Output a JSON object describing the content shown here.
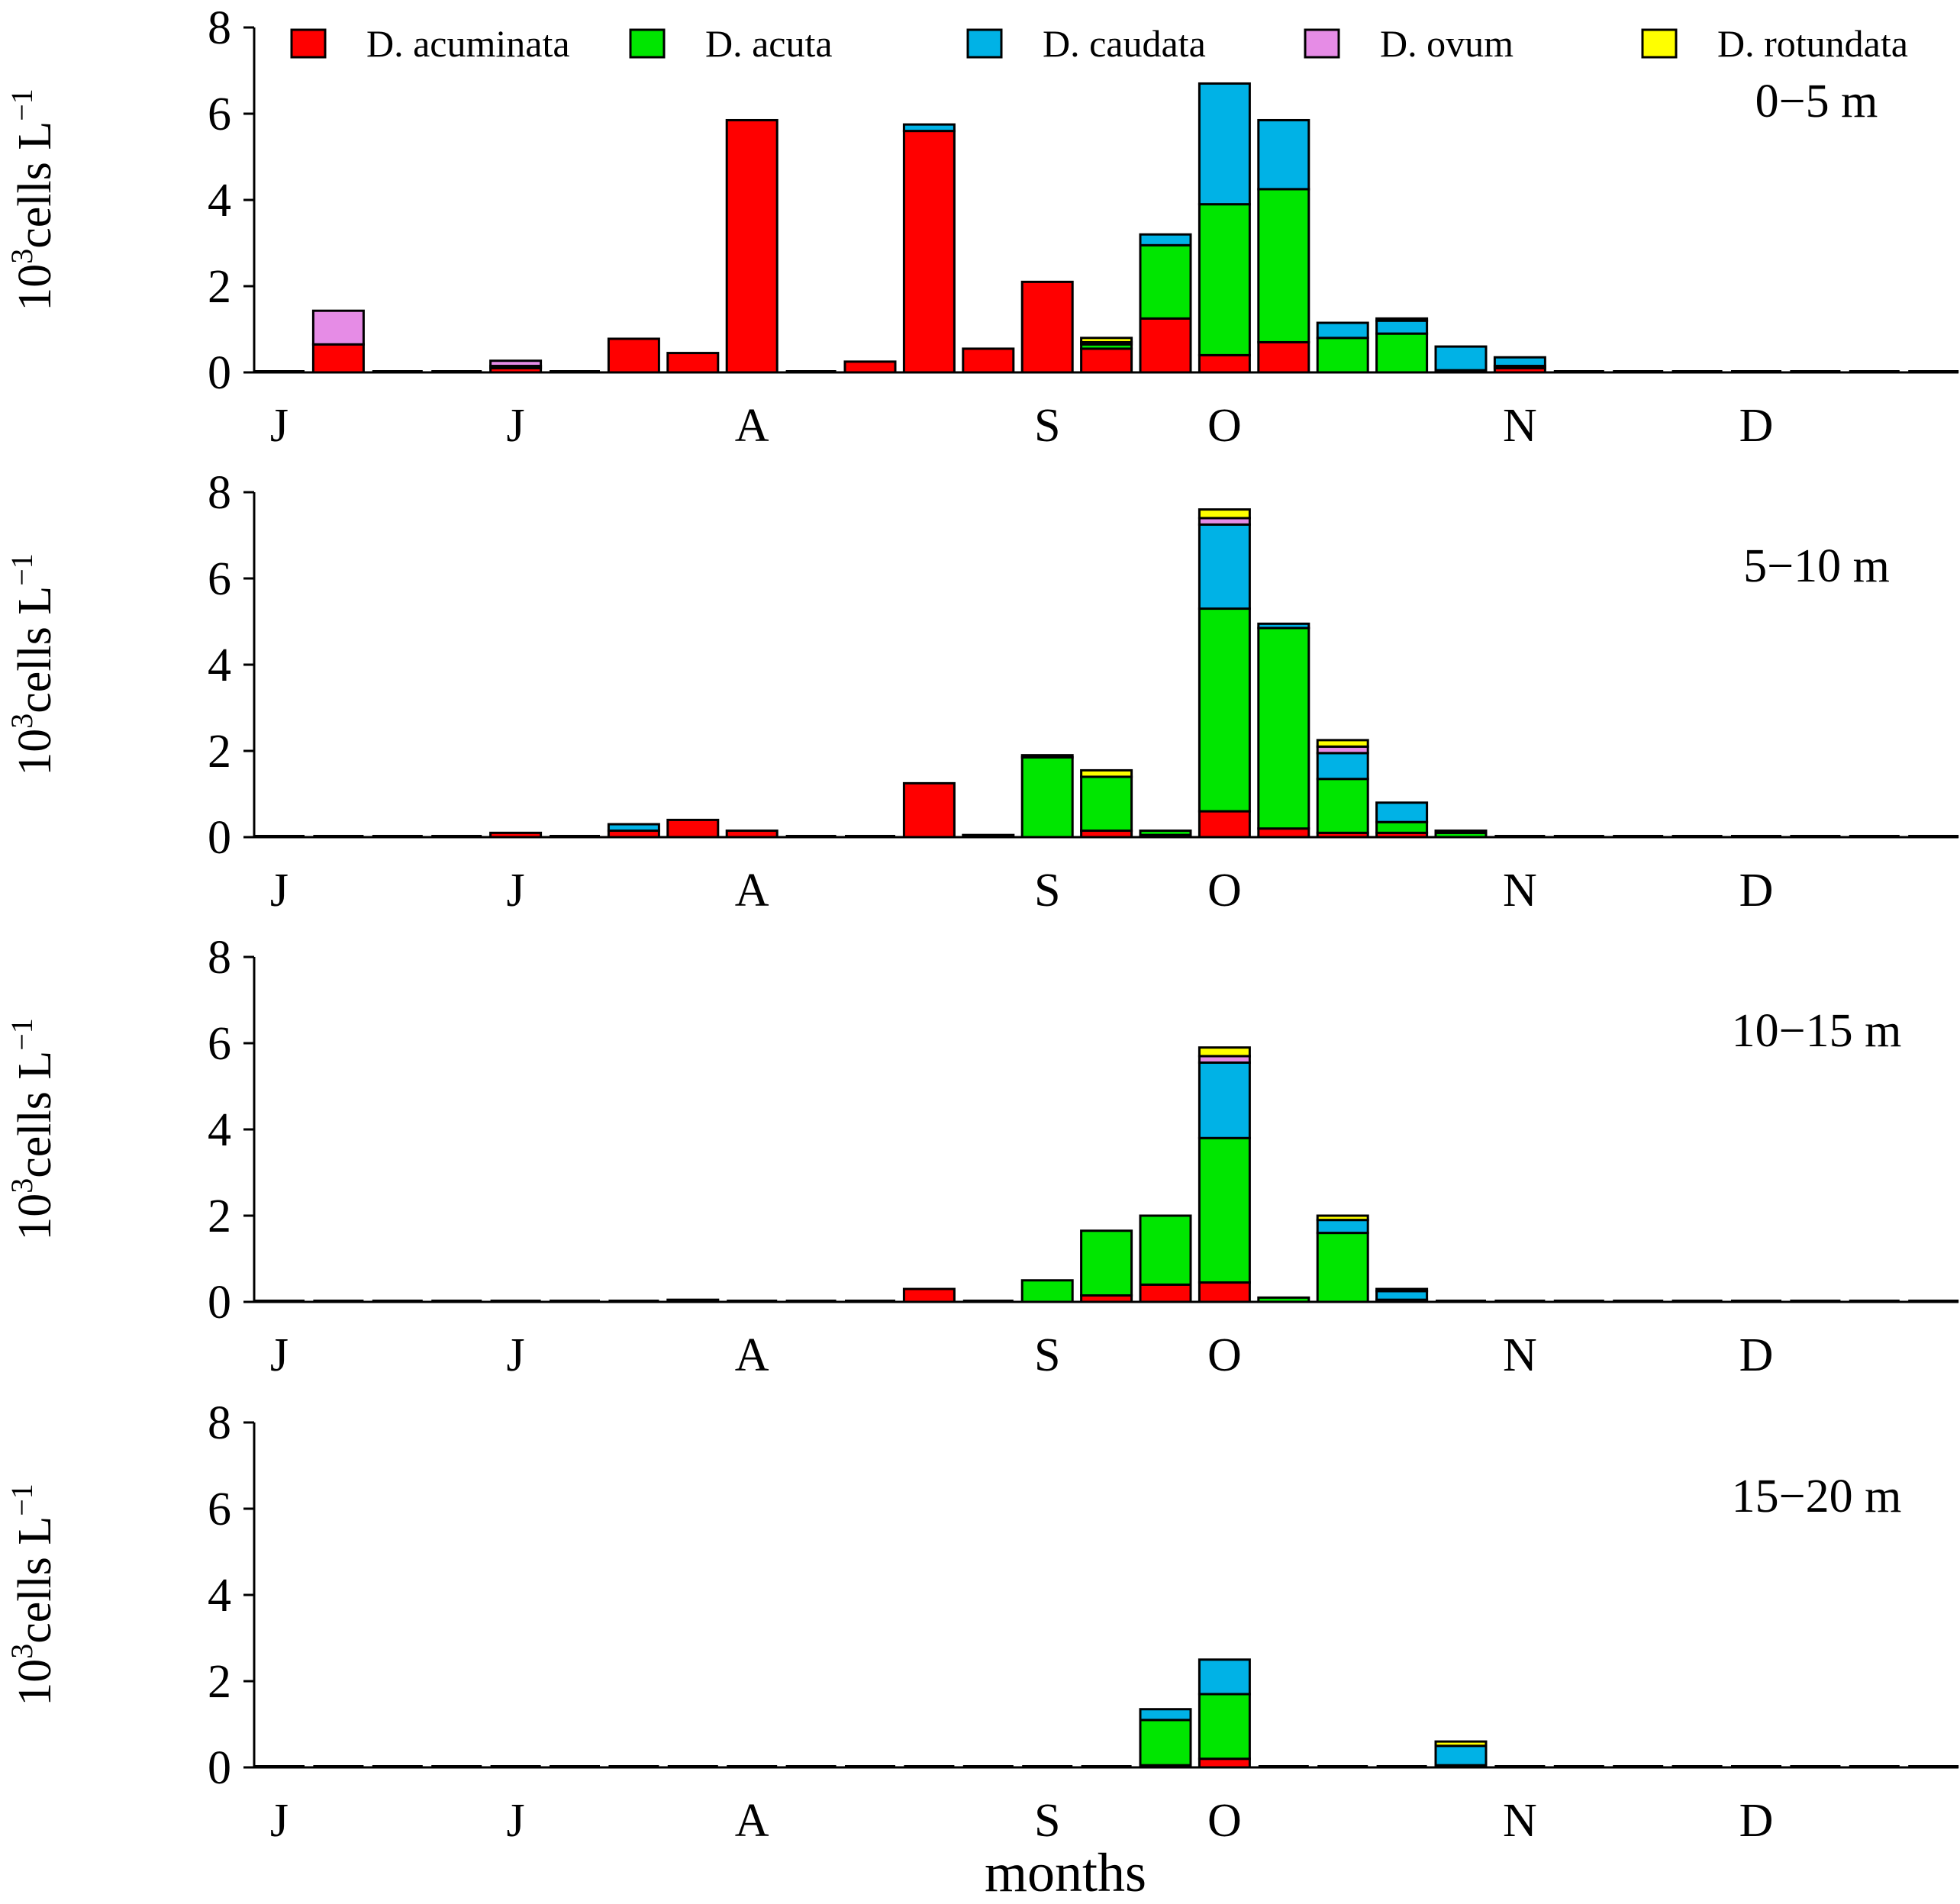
{
  "chart_data": {
    "type": "bar",
    "stacked": true,
    "xlabel": "months",
    "ylabel": {
      "base": "10",
      "exp": "3",
      "unit": "cells L",
      "unit_exp": "−1"
    },
    "ylim": [
      0,
      8
    ],
    "yticks": [
      "0",
      "2",
      "4",
      "6",
      "8"
    ],
    "ytick_values": [
      0,
      2,
      4,
      6,
      8
    ],
    "legend": {
      "position": "top",
      "entries": [
        {
          "name": "D. acuminata",
          "color": "#ff0000"
        },
        {
          "name": "D. acuta",
          "color": "#00e600"
        },
        {
          "name": "D. caudata",
          "color": "#00b2e6"
        },
        {
          "name": "D. ovum",
          "color": "#e68ce6"
        },
        {
          "name": "D. rotundata",
          "color": "#ffff00"
        }
      ]
    },
    "month_ticks": [
      {
        "label": "J",
        "bar": 0
      },
      {
        "label": "J",
        "bar": 4
      },
      {
        "label": "A",
        "bar": 8
      },
      {
        "label": "S",
        "bar": 13
      },
      {
        "label": "O",
        "bar": 16
      },
      {
        "label": "N",
        "bar": 21
      },
      {
        "label": "D",
        "bar": 25
      }
    ],
    "n_bars": 29,
    "panels": [
      {
        "label": "0−5 m",
        "bars": [
          [
            0,
            0,
            0,
            0,
            0
          ],
          [
            0.65,
            0,
            0,
            0.78,
            0
          ],
          [
            0,
            0,
            0,
            0,
            0
          ],
          [
            0,
            0,
            0,
            0,
            0
          ],
          [
            0.1,
            0,
            0.05,
            0.12,
            0
          ],
          [
            0,
            0,
            0,
            0,
            0
          ],
          [
            0.78,
            0,
            0,
            0,
            0
          ],
          [
            0.45,
            0,
            0,
            0,
            0
          ],
          [
            5.85,
            0,
            0,
            0,
            0
          ],
          [
            0,
            0,
            0,
            0,
            0
          ],
          [
            0.25,
            0,
            0,
            0,
            0
          ],
          [
            5.6,
            0,
            0.15,
            0,
            0
          ],
          [
            0.55,
            0,
            0,
            0,
            0
          ],
          [
            2.1,
            0,
            0,
            0,
            0
          ],
          [
            0.55,
            0.1,
            0.05,
            0,
            0.1
          ],
          [
            1.25,
            1.7,
            0.25,
            0,
            0
          ],
          [
            0.4,
            3.5,
            2.8,
            0,
            0
          ],
          [
            0.7,
            3.55,
            1.6,
            0,
            0
          ],
          [
            0,
            0.8,
            0.35,
            0,
            0
          ],
          [
            0,
            0.9,
            0.3,
            0,
            0.05
          ],
          [
            0.05,
            0,
            0.55,
            0,
            0
          ],
          [
            0.1,
            0.05,
            0.2,
            0,
            0
          ],
          [
            0,
            0,
            0,
            0,
            0
          ],
          [
            0,
            0,
            0,
            0,
            0
          ],
          [
            0,
            0,
            0,
            0,
            0
          ],
          [
            0,
            0,
            0,
            0,
            0
          ],
          [
            0,
            0,
            0,
            0,
            0
          ],
          [
            0,
            0,
            0,
            0,
            0
          ],
          [
            0,
            0,
            0,
            0,
            0
          ]
        ]
      },
      {
        "label": "5−10 m",
        "bars": [
          [
            0,
            0,
            0,
            0,
            0
          ],
          [
            0,
            0,
            0,
            0,
            0
          ],
          [
            0,
            0,
            0,
            0,
            0
          ],
          [
            0,
            0,
            0,
            0,
            0
          ],
          [
            0.1,
            0,
            0,
            0,
            0
          ],
          [
            0,
            0,
            0,
            0,
            0
          ],
          [
            0.15,
            0,
            0.15,
            0,
            0
          ],
          [
            0.4,
            0,
            0,
            0,
            0
          ],
          [
            0.15,
            0,
            0,
            0,
            0
          ],
          [
            0,
            0,
            0,
            0,
            0
          ],
          [
            0,
            0,
            0,
            0,
            0
          ],
          [
            1.25,
            0,
            0,
            0,
            0
          ],
          [
            0.05,
            0,
            0,
            0,
            0
          ],
          [
            0,
            1.85,
            0,
            0,
            0.05
          ],
          [
            0.15,
            1.25,
            0,
            0,
            0.15
          ],
          [
            0.05,
            0.1,
            0,
            0,
            0
          ],
          [
            0.6,
            4.7,
            1.95,
            0.15,
            0.2
          ],
          [
            0.2,
            4.65,
            0.1,
            0,
            0
          ],
          [
            0.1,
            1.25,
            0.6,
            0.15,
            0.15
          ],
          [
            0.1,
            0.25,
            0.45,
            0,
            0
          ],
          [
            0,
            0.1,
            0,
            0,
            0.05
          ],
          [
            0,
            0,
            0,
            0,
            0
          ],
          [
            0,
            0,
            0,
            0,
            0
          ],
          [
            0,
            0,
            0,
            0,
            0
          ],
          [
            0,
            0,
            0,
            0,
            0
          ],
          [
            0,
            0,
            0,
            0,
            0
          ],
          [
            0,
            0,
            0,
            0,
            0
          ],
          [
            0,
            0,
            0,
            0,
            0
          ],
          [
            0,
            0,
            0,
            0,
            0
          ]
        ]
      },
      {
        "label": "10−15 m",
        "bars": [
          [
            0,
            0,
            0,
            0,
            0
          ],
          [
            0,
            0,
            0,
            0,
            0
          ],
          [
            0,
            0,
            0,
            0,
            0
          ],
          [
            0,
            0,
            0,
            0,
            0
          ],
          [
            0,
            0,
            0,
            0,
            0
          ],
          [
            0,
            0,
            0,
            0,
            0
          ],
          [
            0,
            0,
            0,
            0,
            0
          ],
          [
            0.05,
            0,
            0,
            0,
            0
          ],
          [
            0,
            0,
            0,
            0,
            0
          ],
          [
            0,
            0,
            0,
            0,
            0
          ],
          [
            0,
            0,
            0,
            0,
            0
          ],
          [
            0.3,
            0,
            0,
            0,
            0
          ],
          [
            0,
            0,
            0,
            0,
            0
          ],
          [
            0,
            0.5,
            0,
            0,
            0
          ],
          [
            0.15,
            1.5,
            0,
            0,
            0
          ],
          [
            0.4,
            1.6,
            0,
            0,
            0
          ],
          [
            0.45,
            3.35,
            1.75,
            0.15,
            0.2
          ],
          [
            0,
            0.1,
            0,
            0,
            0
          ],
          [
            0,
            1.6,
            0.3,
            0,
            0.1
          ],
          [
            0,
            0.05,
            0.2,
            0,
            0.05
          ],
          [
            0,
            0,
            0,
            0,
            0
          ],
          [
            0,
            0,
            0,
            0,
            0
          ],
          [
            0,
            0,
            0,
            0,
            0
          ],
          [
            0,
            0,
            0,
            0,
            0
          ],
          [
            0,
            0,
            0,
            0,
            0
          ],
          [
            0,
            0,
            0,
            0,
            0
          ],
          [
            0,
            0,
            0,
            0,
            0
          ],
          [
            0,
            0,
            0,
            0,
            0
          ],
          [
            0,
            0,
            0,
            0,
            0
          ]
        ]
      },
      {
        "label": "15−20 m",
        "bars": [
          [
            0,
            0,
            0,
            0,
            0
          ],
          [
            0,
            0,
            0,
            0,
            0
          ],
          [
            0,
            0,
            0,
            0,
            0
          ],
          [
            0,
            0,
            0,
            0,
            0
          ],
          [
            0,
            0,
            0,
            0,
            0
          ],
          [
            0,
            0,
            0,
            0,
            0
          ],
          [
            0,
            0,
            0,
            0,
            0
          ],
          [
            0,
            0,
            0,
            0,
            0
          ],
          [
            0,
            0,
            0,
            0,
            0
          ],
          [
            0,
            0,
            0,
            0,
            0
          ],
          [
            0,
            0,
            0,
            0,
            0
          ],
          [
            0,
            0,
            0,
            0,
            0
          ],
          [
            0,
            0,
            0,
            0,
            0
          ],
          [
            0,
            0,
            0,
            0,
            0
          ],
          [
            0,
            0,
            0,
            0,
            0
          ],
          [
            0.05,
            1.05,
            0.25,
            0,
            0
          ],
          [
            0.2,
            1.5,
            0.8,
            0,
            0
          ],
          [
            0,
            0,
            0,
            0,
            0
          ],
          [
            0,
            0,
            0,
            0,
            0
          ],
          [
            0,
            0,
            0,
            0,
            0
          ],
          [
            0,
            0.05,
            0.45,
            0,
            0.1
          ],
          [
            0,
            0,
            0,
            0,
            0
          ],
          [
            0,
            0,
            0,
            0,
            0
          ],
          [
            0,
            0,
            0,
            0,
            0
          ],
          [
            0,
            0,
            0,
            0,
            0
          ],
          [
            0,
            0,
            0,
            0,
            0
          ],
          [
            0,
            0,
            0,
            0,
            0
          ],
          [
            0,
            0,
            0,
            0,
            0
          ],
          [
            0,
            0,
            0,
            0,
            0
          ]
        ]
      }
    ]
  }
}
